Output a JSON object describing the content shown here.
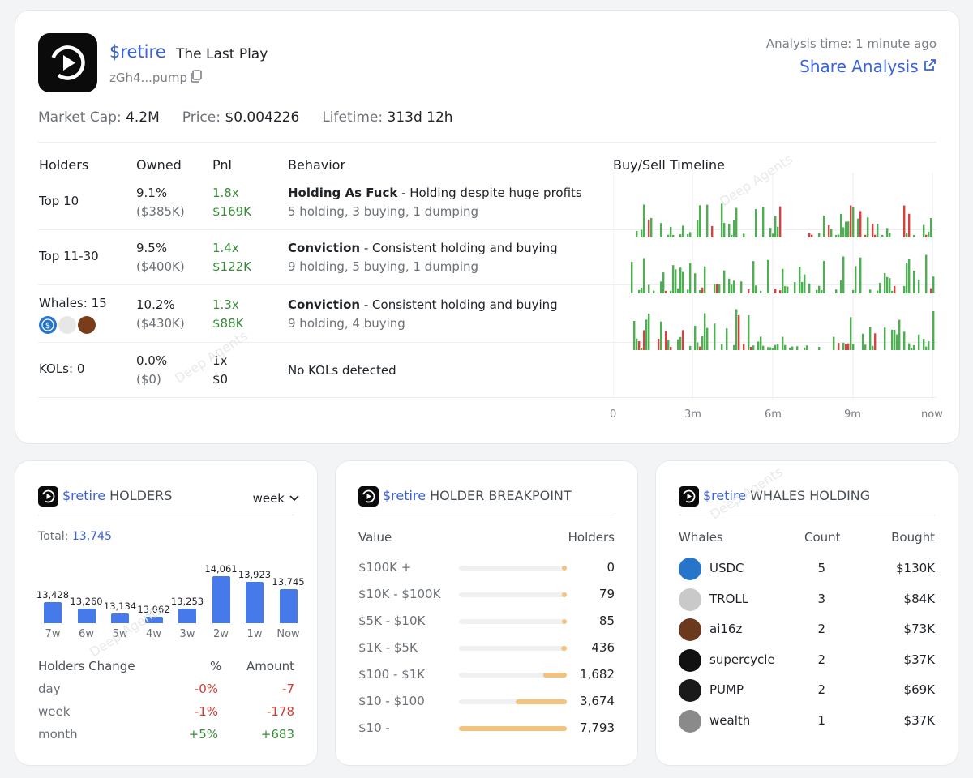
{
  "token": {
    "symbol": "$retire",
    "name": "The Last Play",
    "address": "zGh4...pump",
    "analysis_time": "Analysis time: 1 minute ago",
    "share_label": "Share Analysis",
    "market_cap_label": "Market Cap:",
    "market_cap": "4.2M",
    "price_label": "Price:",
    "price": "$0.004226",
    "lifetime_label": "Lifetime:",
    "lifetime": "313d 12h"
  },
  "table": {
    "headers": [
      "Holders",
      "Owned",
      "Pnl",
      "Behavior",
      "Buy/Sell Timeline"
    ],
    "rows": [
      {
        "holder": "Top 10",
        "owned_pct": "9.1%",
        "owned_usd": "($385K)",
        "pnl_x": "1.8x",
        "pnl_usd": "$169K",
        "behavior_title": "Holding As Fuck",
        "behavior_desc": " - Holding despite huge profits",
        "behavior_stats": "5 holding, 3 buying, 1 dumping"
      },
      {
        "holder": "Top 11-30",
        "owned_pct": "9.5%",
        "owned_usd": "($400K)",
        "pnl_x": "1.4x",
        "pnl_usd": "$122K",
        "behavior_title": "Conviction",
        "behavior_desc": " - Consistent holding and buying",
        "behavior_stats": "9 holding, 5 buying, 1 dumping"
      },
      {
        "holder": "Whales: 15",
        "owned_pct": "10.2%",
        "owned_usd": "($430K)",
        "pnl_x": "1.3x",
        "pnl_usd": "$88K",
        "behavior_title": "Conviction",
        "behavior_desc": " - Consistent holding and buying",
        "behavior_stats": "9 holding, 4 buying"
      },
      {
        "holder": "KOLs: 0",
        "owned_pct": "0.0%",
        "owned_usd": "($0)",
        "pnl_x": "1x",
        "pnl_usd": "$0",
        "behavior_title": "",
        "behavior_desc": "No KOLs detected",
        "behavior_stats": ""
      }
    ],
    "timeline_ticks": [
      "0",
      "3m",
      "6m",
      "9m",
      "now"
    ]
  },
  "watermark": "Deep Agents",
  "holders_card": {
    "title": "HOLDERS",
    "period": "week",
    "total_label": "Total:",
    "total": "13,745",
    "change_headers": [
      "Holders Change",
      "%",
      "Amount"
    ],
    "changes": [
      {
        "period": "day",
        "pct": "-0%",
        "amount": "-7"
      },
      {
        "period": "week",
        "pct": "-1%",
        "amount": "-178"
      },
      {
        "period": "month",
        "pct": "+5%",
        "amount": "+683"
      }
    ]
  },
  "chart_data": {
    "type": "bar",
    "title": "$retire HOLDERS",
    "categories": [
      "7w",
      "6w",
      "5w",
      "4w",
      "3w",
      "2w",
      "1w",
      "Now"
    ],
    "values": [
      13428,
      13260,
      13134,
      13062,
      13253,
      14061,
      13923,
      13745
    ],
    "value_labels": [
      "13,428",
      "13,260",
      "13,134",
      "13,062",
      "13,253",
      "14,061",
      "13,923",
      "13,745"
    ],
    "ylim": [
      12900,
      14100
    ],
    "color": "#4679ea"
  },
  "breakpoint_card": {
    "title": "HOLDER BREAKPOINT",
    "headers": [
      "Value",
      "Holders"
    ],
    "rows": [
      {
        "range": "$100K +",
        "count": "0",
        "share": 0.0
      },
      {
        "range": "$10K - $100K",
        "count": "79",
        "share": 0.01
      },
      {
        "range": "$5K - $10K",
        "count": "85",
        "share": 0.011
      },
      {
        "range": "$1K - $5K",
        "count": "436",
        "share": 0.056
      },
      {
        "range": "$100 - $1K",
        "count": "1,682",
        "share": 0.216
      },
      {
        "range": "$10 - $100",
        "count": "3,674",
        "share": 0.471
      },
      {
        "range": "$10 -",
        "count": "7,793",
        "share": 1.0
      }
    ]
  },
  "whales_card": {
    "title": "WHALES HOLDING",
    "headers": [
      "Whales",
      "Count",
      "Bought"
    ],
    "rows": [
      {
        "name": "USDC",
        "count": "5",
        "bought": "$130K",
        "icon": "usdc-icon",
        "color": "#2775ca"
      },
      {
        "name": "TROLL",
        "count": "3",
        "bought": "$84K",
        "icon": "troll-icon",
        "color": "#c9c9c9"
      },
      {
        "name": "ai16z",
        "count": "2",
        "bought": "$73K",
        "icon": "ai16z-icon",
        "color": "#6b3a1e"
      },
      {
        "name": "supercycle",
        "count": "2",
        "bought": "$37K",
        "icon": "supercycle-icon",
        "color": "#111111"
      },
      {
        "name": "PUMP",
        "count": "2",
        "bought": "$69K",
        "icon": "pump-icon",
        "color": "#1a1a1a"
      },
      {
        "name": "wealth",
        "count": "1",
        "bought": "$37K",
        "icon": "wealth-icon",
        "color": "#8a8a8a"
      }
    ]
  },
  "colors": {
    "accent": "#3a63db",
    "buy": "#4caf50",
    "sell": "#d94040",
    "breakpoint": "#f1c37f"
  }
}
